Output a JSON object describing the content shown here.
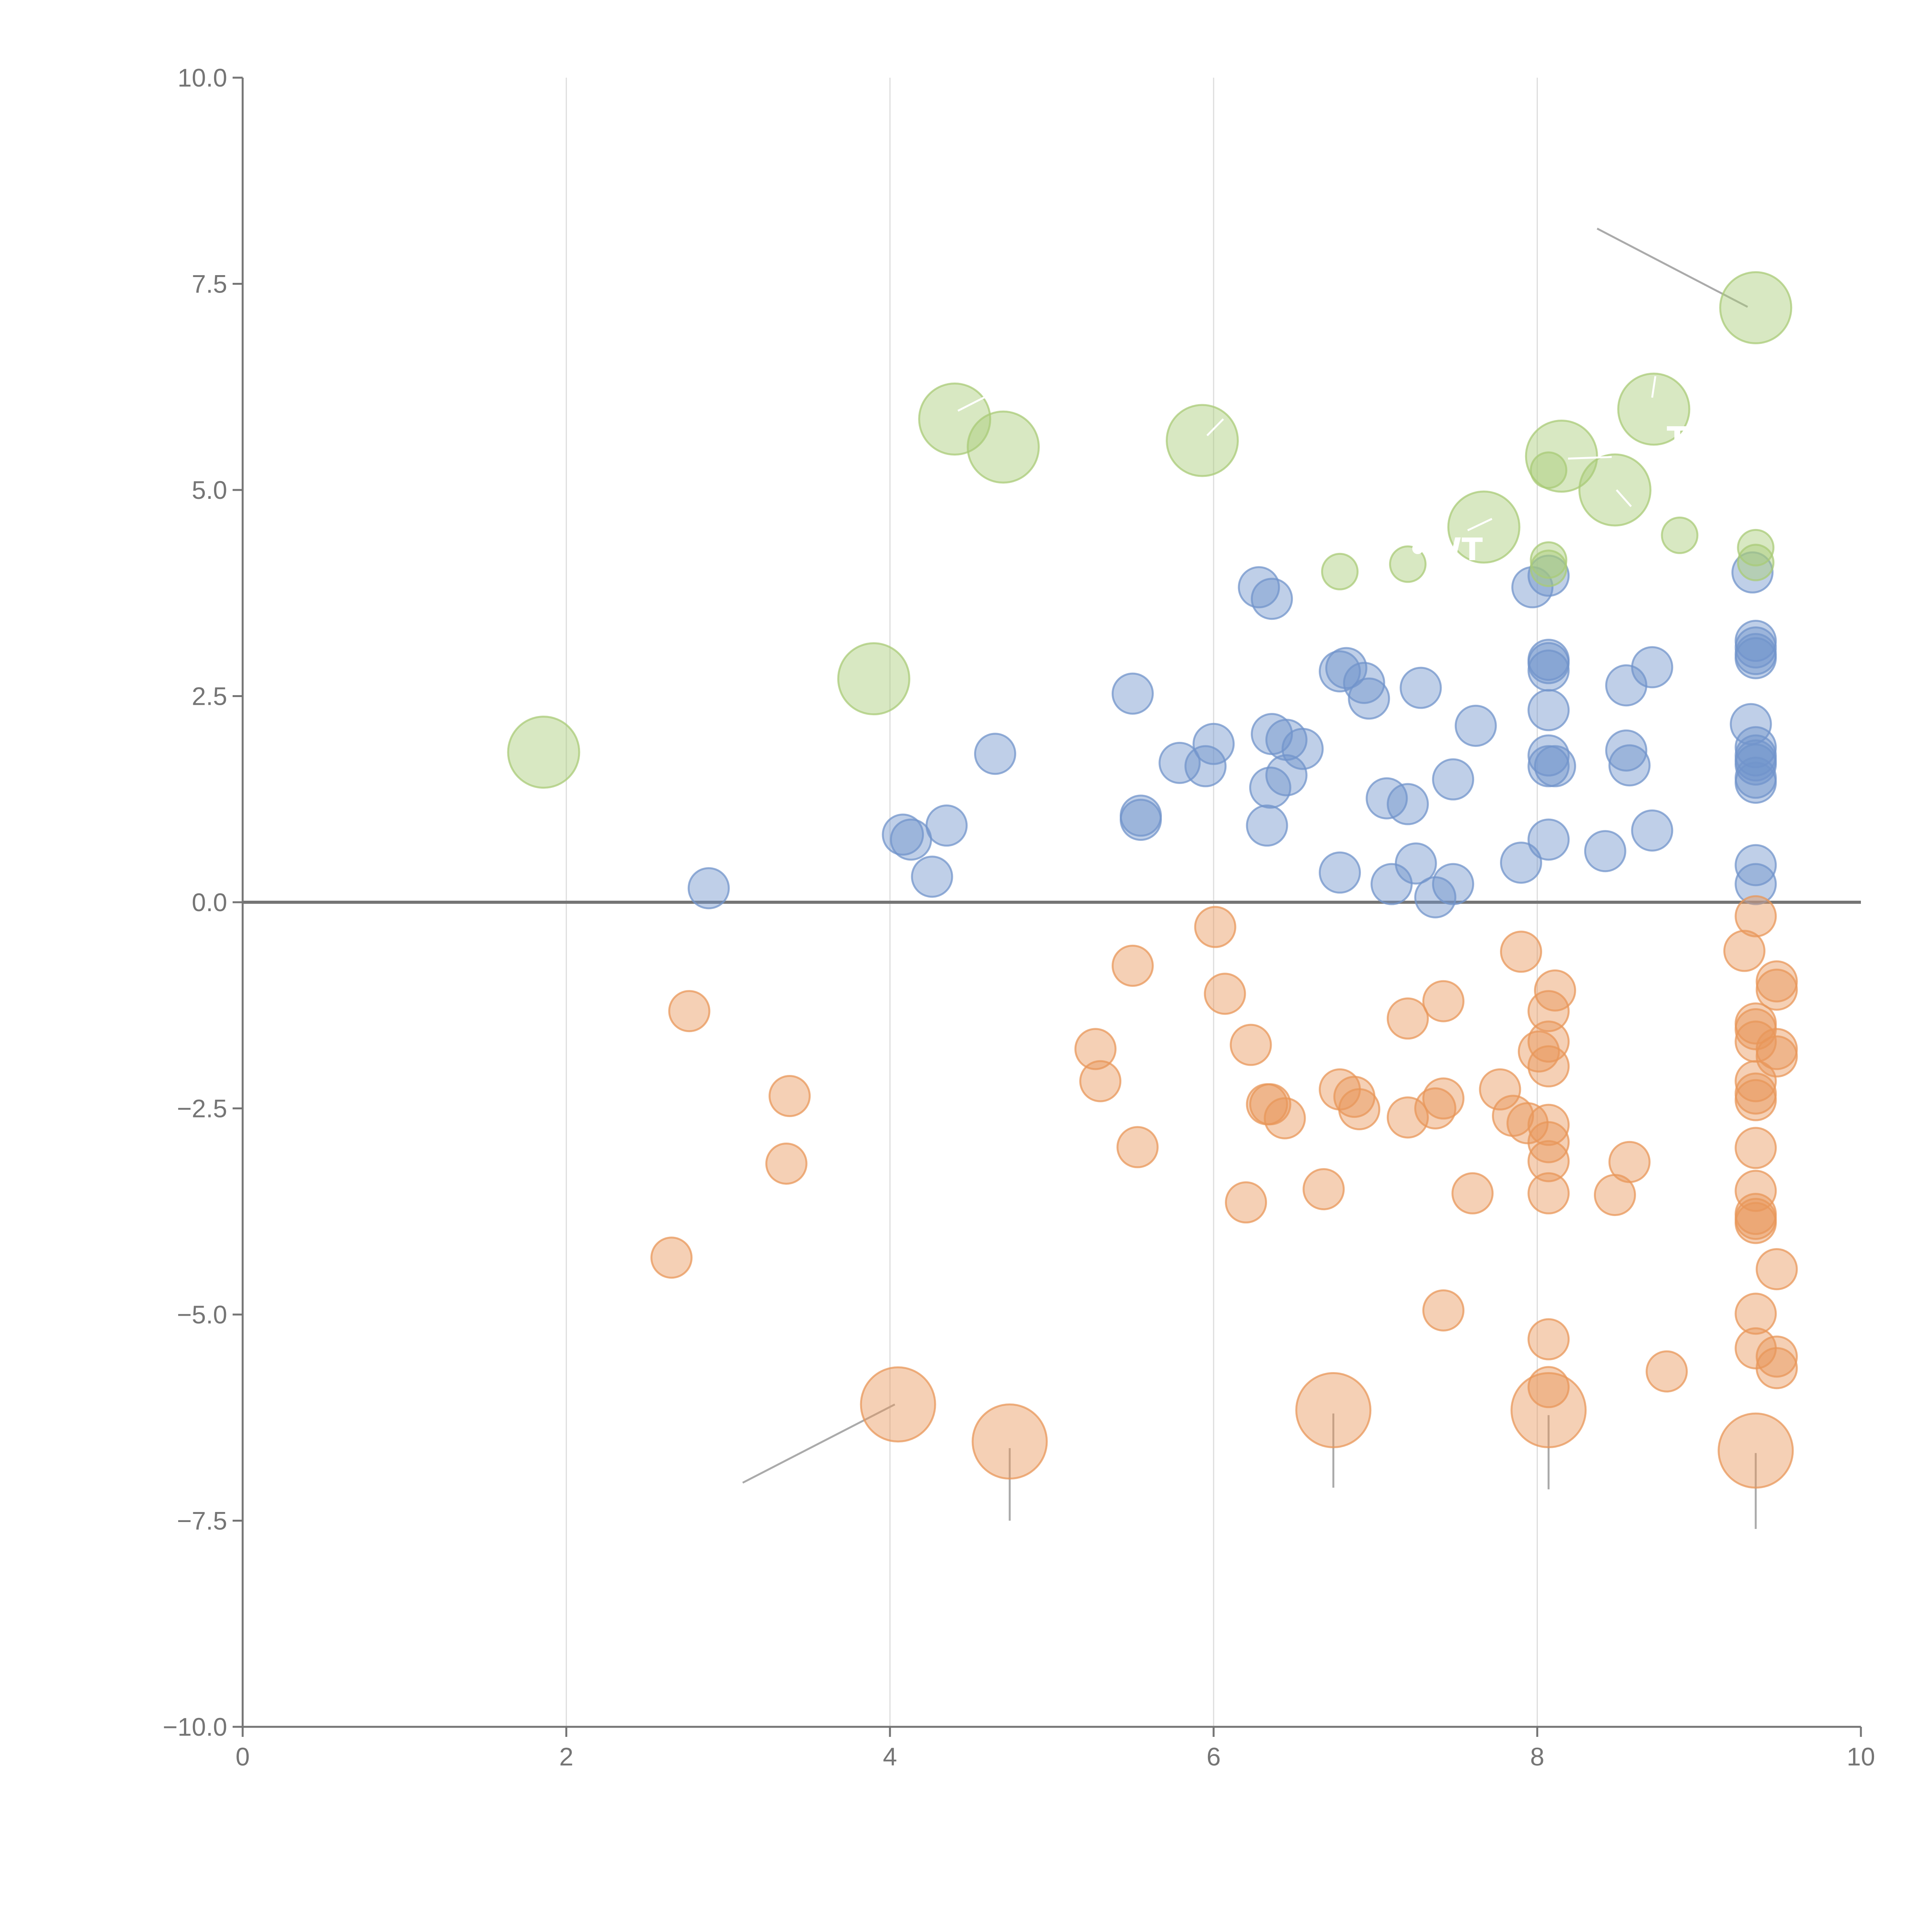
{
  "chart_data": {
    "type": "scatter",
    "title": "",
    "xlabel": "",
    "ylabel": "",
    "xlim": [
      0,
      10
    ],
    "ylim": [
      -10,
      10
    ],
    "x_ticks": [
      "0",
      "2",
      "4",
      "6",
      "8",
      "10"
    ],
    "y_ticks": [
      "10.0",
      "7.5",
      "5.0",
      "2.5",
      "0.0",
      "−2.5",
      "−5.0",
      "−7.5",
      "−10.0"
    ],
    "x_tick_values": [
      0,
      2,
      4,
      6,
      8,
      10
    ],
    "y_tick_values": [
      10,
      7.5,
      5,
      2.5,
      0,
      -2.5,
      -5,
      -7.5,
      -10
    ],
    "vertical_grid": [
      2,
      4,
      6,
      8
    ],
    "zero_line": 0,
    "colors": {
      "blue": "#7194cb",
      "orange": "#e8975a",
      "green": "#a9cb77",
      "axis": "#757575",
      "grid": "#dddddd",
      "leader": "#aaaaaa"
    },
    "series": [
      {
        "name": "blue",
        "color": "#7194cb",
        "points": [
          [
            2.88,
            0.17
          ],
          [
            4.08,
            0.82
          ],
          [
            4.13,
            0.76
          ],
          [
            4.26,
            0.31
          ],
          [
            4.35,
            0.93
          ],
          [
            4.65,
            1.8
          ],
          [
            5.5,
            2.53
          ],
          [
            5.55,
            1.05
          ],
          [
            5.55,
            1.0
          ],
          [
            5.79,
            1.69
          ],
          [
            5.95,
            1.65
          ],
          [
            6.0,
            1.92
          ],
          [
            6.28,
            3.82
          ],
          [
            6.33,
            0.93
          ],
          [
            6.35,
            1.39
          ],
          [
            6.36,
            3.68
          ],
          [
            6.36,
            2.04
          ],
          [
            6.45,
            1.97
          ],
          [
            6.45,
            1.54
          ],
          [
            6.55,
            1.86
          ],
          [
            6.78,
            0.36
          ],
          [
            6.78,
            2.8
          ],
          [
            6.82,
            2.84
          ],
          [
            6.93,
            2.66
          ],
          [
            6.96,
            2.47
          ],
          [
            7.07,
            1.26
          ],
          [
            7.1,
            0.22
          ],
          [
            7.2,
            1.19
          ],
          [
            7.25,
            0.47
          ],
          [
            7.28,
            2.6
          ],
          [
            7.37,
            0.06
          ],
          [
            7.48,
            0.22
          ],
          [
            7.48,
            1.49
          ],
          [
            7.62,
            2.14
          ],
          [
            7.9,
            0.48
          ],
          [
            7.97,
            3.82
          ],
          [
            8.07,
            3.96
          ],
          [
            8.07,
            2.94
          ],
          [
            8.07,
            2.9
          ],
          [
            8.07,
            2.81
          ],
          [
            8.07,
            2.33
          ],
          [
            8.07,
            1.78
          ],
          [
            8.07,
            1.65
          ],
          [
            8.07,
            0.76
          ],
          [
            8.11,
            1.65
          ],
          [
            8.42,
            0.62
          ],
          [
            8.55,
            2.63
          ],
          [
            8.55,
            1.84
          ],
          [
            8.57,
            1.66
          ],
          [
            8.71,
            2.85
          ],
          [
            8.71,
            0.87
          ],
          [
            9.32,
            2.16
          ],
          [
            9.33,
            4.0
          ],
          [
            9.35,
            3.17
          ],
          [
            9.35,
            3.09
          ],
          [
            9.35,
            3.01
          ],
          [
            9.35,
            2.96
          ],
          [
            9.35,
            1.88
          ],
          [
            9.35,
            1.78
          ],
          [
            9.35,
            1.72
          ],
          [
            9.35,
            1.67
          ],
          [
            9.35,
            1.51
          ],
          [
            9.35,
            1.45
          ],
          [
            9.35,
            0.45
          ],
          [
            9.35,
            0.22
          ]
        ]
      },
      {
        "name": "orange",
        "color": "#e8975a",
        "points": [
          [
            2.65,
            -4.31
          ],
          [
            2.76,
            -1.32
          ],
          [
            3.36,
            -3.17
          ],
          [
            3.38,
            -2.35
          ],
          [
            5.27,
            -1.78
          ],
          [
            5.3,
            -2.17
          ],
          [
            5.5,
            -0.77
          ],
          [
            5.53,
            -2.97
          ],
          [
            6.01,
            -0.3
          ],
          [
            6.07,
            -1.11
          ],
          [
            6.2,
            -3.64
          ],
          [
            6.23,
            -1.73
          ],
          [
            6.33,
            -2.45
          ],
          [
            6.35,
            -2.45
          ],
          [
            6.44,
            -2.62
          ],
          [
            6.68,
            -3.48
          ],
          [
            6.78,
            -2.27
          ],
          [
            6.87,
            -2.36
          ],
          [
            6.9,
            -2.51
          ],
          [
            7.2,
            -2.61
          ],
          [
            7.2,
            -1.41
          ],
          [
            7.37,
            -2.5
          ],
          [
            7.42,
            -2.38
          ],
          [
            7.42,
            -1.2
          ],
          [
            7.42,
            -4.95
          ],
          [
            7.6,
            -3.53
          ],
          [
            7.77,
            -2.27
          ],
          [
            7.85,
            -2.59
          ],
          [
            7.9,
            -0.6
          ],
          [
            7.94,
            -2.68
          ],
          [
            8.01,
            -1.81
          ],
          [
            8.07,
            -1.32
          ],
          [
            8.07,
            -1.69
          ],
          [
            8.07,
            -1.99
          ],
          [
            8.07,
            -2.7
          ],
          [
            8.07,
            -2.91
          ],
          [
            8.07,
            -3.14
          ],
          [
            8.07,
            -3.53
          ],
          [
            8.07,
            -5.3
          ],
          [
            8.07,
            -5.88
          ],
          [
            8.11,
            -1.07
          ],
          [
            8.48,
            -3.55
          ],
          [
            8.57,
            -3.15
          ],
          [
            8.8,
            -5.69
          ],
          [
            9.28,
            -0.59
          ],
          [
            9.35,
            -0.17
          ],
          [
            9.35,
            -1.47
          ],
          [
            9.35,
            -1.54
          ],
          [
            9.35,
            -1.69
          ],
          [
            9.35,
            -2.17
          ],
          [
            9.35,
            -2.32
          ],
          [
            9.35,
            -2.4
          ],
          [
            9.35,
            -2.98
          ],
          [
            9.35,
            -3.5
          ],
          [
            9.35,
            -3.78
          ],
          [
            9.35,
            -3.84
          ],
          [
            9.35,
            -3.89
          ],
          [
            9.35,
            -4.99
          ],
          [
            9.35,
            -5.41
          ],
          [
            9.48,
            -0.96
          ],
          [
            9.48,
            -1.06
          ],
          [
            9.48,
            -1.78
          ],
          [
            9.48,
            -1.87
          ],
          [
            9.48,
            -4.45
          ],
          [
            9.48,
            -5.51
          ],
          [
            9.48,
            -5.65
          ]
        ]
      },
      {
        "name": "green",
        "color": "#a9cb77",
        "points": [
          [
            6.78,
            4.01
          ],
          [
            7.2,
            4.1
          ],
          [
            8.07,
            5.24
          ],
          [
            8.07,
            4.15
          ],
          [
            8.07,
            4.05
          ],
          [
            8.88,
            4.45
          ],
          [
            9.35,
            4.3
          ],
          [
            9.35,
            4.12
          ]
        ]
      },
      {
        "name": "green-large",
        "color": "#a9cb77",
        "points": [
          [
            1.86,
            1.82
          ],
          [
            3.9,
            2.71
          ],
          [
            4.4,
            5.86
          ],
          [
            4.7,
            5.52
          ],
          [
            5.93,
            5.6
          ],
          [
            7.67,
            4.55
          ],
          [
            8.15,
            5.41
          ],
          [
            8.48,
            5.0
          ],
          [
            8.72,
            5.98
          ],
          [
            9.35,
            7.21
          ]
        ]
      },
      {
        "name": "orange-large",
        "color": "#e8975a",
        "points": [
          [
            4.05,
            -6.09
          ],
          [
            4.74,
            -6.54
          ],
          [
            6.74,
            -6.16
          ],
          [
            8.07,
            -6.16
          ],
          [
            9.35,
            -6.65
          ]
        ]
      }
    ],
    "leader_lines": [
      [
        [
          8.37,
          8.17
        ],
        [
          9.3,
          7.22
        ]
      ],
      [
        [
          4.03,
          -6.09
        ],
        [
          3.09,
          -7.04
        ]
      ],
      [
        [
          4.74,
          -6.62
        ],
        [
          4.74,
          -7.5
        ]
      ],
      [
        [
          6.74,
          -6.2
        ],
        [
          6.74,
          -7.1
        ]
      ],
      [
        [
          8.07,
          -6.22
        ],
        [
          8.07,
          -7.12
        ]
      ],
      [
        [
          9.35,
          -6.68
        ],
        [
          9.35,
          -7.6
        ]
      ]
    ],
    "white_leader_lines": [
      [
        [
          4.42,
          5.96
        ],
        [
          4.59,
          6.13
        ]
      ],
      [
        [
          5.96,
          5.66
        ],
        [
          6.06,
          5.86
        ]
      ],
      [
        [
          7.57,
          4.51
        ],
        [
          7.72,
          4.65
        ]
      ],
      [
        [
          8.19,
          5.38
        ],
        [
          8.46,
          5.4
        ]
      ],
      [
        [
          8.49,
          5.0
        ],
        [
          8.58,
          4.8
        ]
      ],
      [
        [
          8.71,
          6.12
        ],
        [
          8.73,
          6.38
        ]
      ]
    ],
    "annotations": [
      {
        "text": "•WT",
        "x": 7.2,
        "y": 4.15
      },
      {
        "text": "TE",
        "x": 8.8,
        "y": 5.5
      }
    ]
  }
}
